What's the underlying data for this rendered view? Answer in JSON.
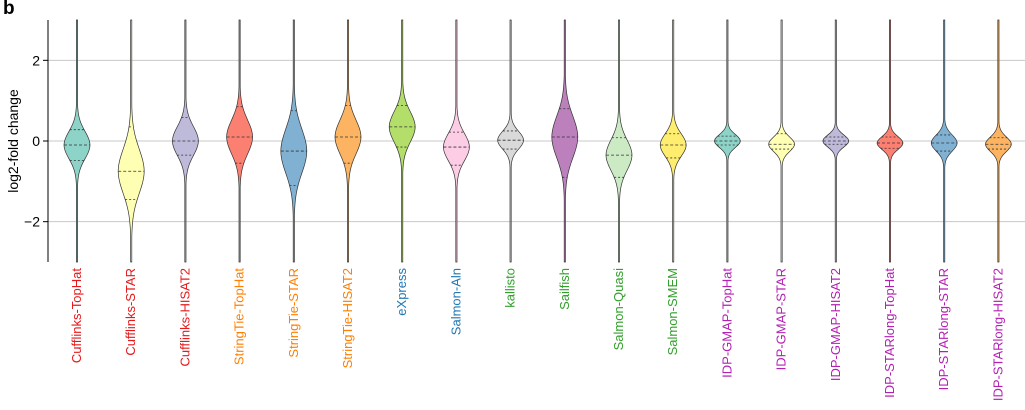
{
  "panel_label": "b",
  "chart_data": {
    "type": "violin",
    "ylabel": "log2-fold change",
    "ylim": [
      -3,
      3
    ],
    "yticks": [
      -2,
      0,
      2
    ],
    "grid": true,
    "series": [
      {
        "name": "Cufflinks-TopHat",
        "label_color": "#e41a1c",
        "fill": "#8dd3c7",
        "median": -0.1,
        "q1": -0.48,
        "q3": 0.28,
        "spread": 0.34
      },
      {
        "name": "Cufflinks-STAR",
        "label_color": "#e41a1c",
        "fill": "#ffffb3",
        "median": -0.75,
        "q1": -1.45,
        "q3": 0.35,
        "spread": 0.55
      },
      {
        "name": "Cufflinks-HISAT2",
        "label_color": "#e41a1c",
        "fill": "#bebada",
        "median": 0.0,
        "q1": -0.35,
        "q3": 0.58,
        "spread": 0.36
      },
      {
        "name": "StringTie-TopHat",
        "label_color": "#ff7f00",
        "fill": "#fb8072",
        "median": 0.1,
        "q1": -0.55,
        "q3": 0.85,
        "spread": 0.42
      },
      {
        "name": "StringTie-STAR",
        "label_color": "#ff7f00",
        "fill": "#80b1d3",
        "median": -0.25,
        "q1": -1.1,
        "q3": 0.75,
        "spread": 0.55
      },
      {
        "name": "StringTie-HISAT2",
        "label_color": "#ff7f00",
        "fill": "#fdb462",
        "median": 0.1,
        "q1": -0.55,
        "q3": 0.88,
        "spread": 0.42
      },
      {
        "name": "eXpress",
        "label_color": "#1f78b4",
        "fill": "#b3de69",
        "median": 0.35,
        "q1": -0.15,
        "q3": 0.88,
        "spread": 0.38
      },
      {
        "name": "Salmon-Aln",
        "label_color": "#1f78b4",
        "fill": "#fccde5",
        "median": -0.15,
        "q1": -0.6,
        "q3": 0.22,
        "spread": 0.34
      },
      {
        "name": "kallisto",
        "label_color": "#33a02c",
        "fill": "#d9d9d9",
        "median": 0.02,
        "q1": -0.2,
        "q3": 0.25,
        "spread": 0.22
      },
      {
        "name": "Sailfish",
        "label_color": "#33a02c",
        "fill": "#bc80bd",
        "median": 0.1,
        "q1": -0.9,
        "q3": 0.8,
        "spread": 0.52
      },
      {
        "name": "Salmon-Quasi",
        "label_color": "#33a02c",
        "fill": "#ccebc5",
        "median": -0.35,
        "q1": -0.9,
        "q3": 0.08,
        "spread": 0.38
      },
      {
        "name": "Salmon-SMEM",
        "label_color": "#33a02c",
        "fill": "#ffed6f",
        "median": -0.1,
        "q1": -0.42,
        "q3": 0.18,
        "spread": 0.28
      },
      {
        "name": "IDP-GMAP-TopHat",
        "label_color": "#b41fb4",
        "fill": "#8dd3c7",
        "median": 0.0,
        "q1": -0.1,
        "q3": 0.12,
        "spread": 0.16
      },
      {
        "name": "IDP-GMAP-STAR",
        "label_color": "#b41fb4",
        "fill": "#ffffb3",
        "median": -0.08,
        "q1": -0.2,
        "q3": 0.18,
        "spread": 0.18
      },
      {
        "name": "IDP-GMAP-HISAT2",
        "label_color": "#b41fb4",
        "fill": "#bebada",
        "median": 0.0,
        "q1": -0.08,
        "q3": 0.1,
        "spread": 0.15
      },
      {
        "name": "IDP-STARlong-TopHat",
        "label_color": "#b41fb4",
        "fill": "#fb8072",
        "median": -0.05,
        "q1": -0.18,
        "q3": 0.1,
        "spread": 0.16
      },
      {
        "name": "IDP-STARlong-STAR",
        "label_color": "#b41fb4",
        "fill": "#80b1d3",
        "median": -0.05,
        "q1": -0.25,
        "q3": 0.15,
        "spread": 0.2
      },
      {
        "name": "IDP-STARlong-HISAT2",
        "label_color": "#b41fb4",
        "fill": "#fdb462",
        "median": -0.08,
        "q1": -0.2,
        "q3": 0.08,
        "spread": 0.18
      }
    ]
  }
}
